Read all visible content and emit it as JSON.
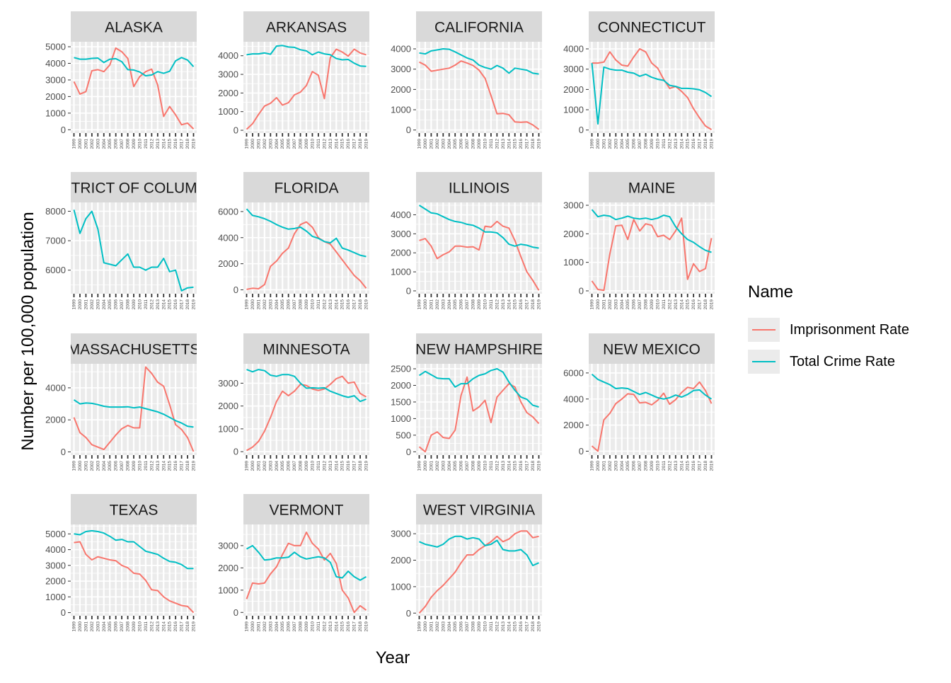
{
  "chart_data": {
    "type": "line",
    "xlabel": "Year",
    "ylabel": "Number per 100,000 population",
    "x": [
      "1999",
      "2000",
      "2001",
      "2002",
      "2003",
      "2004",
      "2005",
      "2006",
      "2007",
      "2008",
      "2009",
      "2010",
      "2011",
      "2012",
      "2013",
      "2014",
      "2015",
      "2016",
      "2017",
      "2018",
      "2019"
    ],
    "legend": {
      "title": "Name",
      "placement": "right",
      "entries": [
        {
          "name": "Imprisonment Rate",
          "color": "#F8766D"
        },
        {
          "name": "Total Crime Rate",
          "color": "#00BFC4"
        }
      ]
    },
    "grid": true,
    "panel_background": "#EBEBEB",
    "strip_background": "#D9D9D9",
    "facets": [
      {
        "title": "ALASKA",
        "ylim": [
          -200,
          5300
        ],
        "yticks": [
          0,
          1000,
          2000,
          3000,
          4000,
          5000
        ],
        "series": [
          {
            "name": "Imprisonment Rate",
            "values": [
              2900,
              2150,
              2300,
              3550,
              3620,
              3500,
              3900,
              4920,
              4700,
              4300,
              2600,
              3200,
              3500,
              3650,
              2700,
              800,
              1400,
              900,
              300,
              400,
              50
            ]
          },
          {
            "name": "Total Crime Rate",
            "values": [
              4350,
              4250,
              4250,
              4300,
              4320,
              4050,
              4250,
              4280,
              4100,
              3620,
              3600,
              3480,
              3250,
              3300,
              3500,
              3400,
              3520,
              4150,
              4350,
              4200,
              3800
            ]
          }
        ]
      },
      {
        "title": "ARKANSAS",
        "ylim": [
          -150,
          4750
        ],
        "yticks": [
          0,
          1000,
          2000,
          3000,
          4000
        ],
        "series": [
          {
            "name": "Imprisonment Rate",
            "values": [
              50,
              350,
              850,
              1300,
              1450,
              1750,
              1350,
              1480,
              1900,
              2050,
              2400,
              3150,
              2950,
              1700,
              3900,
              4350,
              4200,
              3980,
              4350,
              4150,
              4050
            ]
          },
          {
            "name": "Total Crime Rate",
            "values": [
              4050,
              4100,
              4100,
              4150,
              4080,
              4520,
              4550,
              4470,
              4450,
              4320,
              4260,
              4050,
              4200,
              4100,
              4050,
              3850,
              3780,
              3800,
              3600,
              3450,
              3430
            ]
          }
        ]
      },
      {
        "title": "CALIFORNIA",
        "ylim": [
          -150,
          4350
        ],
        "yticks": [
          0,
          1000,
          2000,
          3000,
          4000
        ],
        "series": [
          {
            "name": "Imprisonment Rate",
            "values": [
              3350,
              3200,
              2900,
              2950,
              3000,
              3050,
              3200,
              3400,
              3300,
              3180,
              2950,
              2550,
              1700,
              800,
              820,
              750,
              400,
              380,
              400,
              250,
              30
            ]
          },
          {
            "name": "Total Crime Rate",
            "values": [
              3800,
              3750,
              3900,
              3950,
              4000,
              3980,
              3850,
              3700,
              3550,
              3450,
              3200,
              3080,
              3000,
              3180,
              3050,
              2800,
              3050,
              3000,
              2950,
              2800,
              2760
            ]
          }
        ]
      },
      {
        "title": "CONNECTICUT",
        "ylim": [
          -150,
          4350
        ],
        "yticks": [
          0,
          1000,
          2000,
          3000,
          4000
        ],
        "series": [
          {
            "name": "Imprisonment Rate",
            "values": [
              3300,
              3300,
              3350,
              3850,
              3450,
              3200,
              3150,
              3600,
              4000,
              3850,
              3300,
              3050,
              2500,
              2050,
              2150,
              1900,
              1600,
              1050,
              600,
              200,
              20
            ]
          },
          {
            "name": "Total Crime Rate",
            "values": [
              3300,
              300,
              3100,
              3000,
              2950,
              2950,
              2850,
              2800,
              2650,
              2750,
              2600,
              2500,
              2450,
              2200,
              2150,
              2050,
              2050,
              2030,
              1980,
              1850,
              1650
            ]
          }
        ]
      },
      {
        "title": "DISTRICT OF COLUMBIA",
        "ylim": [
          5200,
          8300
        ],
        "yticks": [
          6000,
          7000,
          8000
        ],
        "series": [
          {
            "name": "Total Crime Rate",
            "values": [
              8050,
              7250,
              7750,
              8000,
              7400,
              6250,
              6200,
              6150,
              6350,
              6550,
              6100,
              6100,
              6000,
              6100,
              6100,
              6400,
              5950,
              6000,
              5300,
              5400,
              5420
            ]
          }
        ]
      },
      {
        "title": "FLORIDA",
        "ylim": [
          -300,
          6700
        ],
        "yticks": [
          0,
          2000,
          4000,
          6000
        ],
        "series": [
          {
            "name": "Imprisonment Rate",
            "values": [
              30,
              120,
              80,
              400,
              1800,
              2200,
              2800,
              3200,
              4300,
              5000,
              5200,
              4800,
              4000,
              3700,
              3500,
              2900,
              2300,
              1700,
              1100,
              700,
              120
            ]
          },
          {
            "name": "Total Crime Rate",
            "values": [
              6200,
              5700,
              5600,
              5450,
              5250,
              5000,
              4800,
              4650,
              4700,
              4800,
              4500,
              4100,
              3950,
              3700,
              3600,
              3950,
              3200,
              3050,
              2850,
              2650,
              2550
            ]
          }
        ]
      },
      {
        "title": "ILLINOIS",
        "ylim": [
          -150,
          4650
        ],
        "yticks": [
          0,
          1000,
          2000,
          3000,
          4000
        ],
        "series": [
          {
            "name": "Imprisonment Rate",
            "values": [
              2650,
              2750,
              2350,
              1700,
              1900,
              2050,
              2350,
              2350,
              2300,
              2320,
              2150,
              3400,
              3350,
              3650,
              3400,
              3300,
              2650,
              1800,
              1000,
              550,
              30
            ]
          },
          {
            "name": "Total Crime Rate",
            "values": [
              4500,
              4300,
              4100,
              4050,
              3900,
              3750,
              3650,
              3600,
              3500,
              3450,
              3300,
              3100,
              3100,
              3050,
              2800,
              2450,
              2350,
              2450,
              2400,
              2300,
              2250
            ]
          }
        ]
      },
      {
        "title": "MAINE",
        "ylim": [
          -100,
          3100
        ],
        "yticks": [
          0,
          1000,
          2000,
          3000
        ],
        "series": [
          {
            "name": "Imprisonment Rate",
            "values": [
              350,
              50,
              20,
              1300,
              2280,
              2300,
              1800,
              2500,
              2100,
              2350,
              2300,
              1900,
              1950,
              1800,
              2100,
              2550,
              400,
              950,
              680,
              780,
              1850
            ]
          },
          {
            "name": "Total Crime Rate",
            "values": [
              2850,
              2600,
              2650,
              2620,
              2500,
              2550,
              2620,
              2550,
              2520,
              2550,
              2500,
              2550,
              2650,
              2600,
              2250,
              2000,
              1800,
              1700,
              1550,
              1420,
              1350
            ]
          }
        ]
      },
      {
        "title": "MASSACHUSETTS",
        "ylim": [
          -200,
          5500
        ],
        "yticks": [
          0,
          2000,
          4000
        ],
        "series": [
          {
            "name": "Imprisonment Rate",
            "values": [
              2150,
              1200,
              900,
              450,
              300,
              150,
              600,
              1050,
              1450,
              1650,
              1500,
              1500,
              5300,
              4900,
              4350,
              4100,
              2950,
              1700,
              1400,
              900,
              20
            ]
          },
          {
            "name": "Total Crime Rate",
            "values": [
              3250,
              3000,
              3050,
              3030,
              2950,
              2850,
              2800,
              2800,
              2800,
              2820,
              2750,
              2800,
              2700,
              2600,
              2500,
              2350,
              2150,
              1950,
              1800,
              1600,
              1550
            ]
          }
        ]
      },
      {
        "title": "MINNESOTA",
        "ylim": [
          -150,
          3850
        ],
        "yticks": [
          0,
          1000,
          2000,
          3000
        ],
        "series": [
          {
            "name": "Imprisonment Rate",
            "values": [
              50,
              200,
              450,
              900,
              1500,
              2200,
              2650,
              2450,
              2650,
              2950,
              2900,
              2750,
              2680,
              2750,
              2950,
              3200,
              3300,
              3000,
              3050,
              2550,
              2400
            ]
          },
          {
            "name": "Total Crime Rate",
            "values": [
              3600,
              3500,
              3600,
              3550,
              3350,
              3300,
              3380,
              3380,
              3300,
              3000,
              2780,
              2800,
              2780,
              2800,
              2650,
              2550,
              2450,
              2380,
              2450,
              2200,
              2300
            ]
          }
        ]
      },
      {
        "title": "NEW HAMPSHIRE",
        "ylim": [
          -100,
          2650
        ],
        "yticks": [
          0,
          500,
          1000,
          1500,
          2000,
          2500
        ],
        "series": [
          {
            "name": "Imprisonment Rate",
            "values": [
              150,
              0,
              500,
              600,
              430,
              400,
              650,
              1700,
              2250,
              1230,
              1350,
              1550,
              880,
              1650,
              1850,
              2050,
              1950,
              1500,
              1180,
              1050,
              850
            ]
          },
          {
            "name": "Total Crime Rate",
            "values": [
              2300,
              2420,
              2320,
              2220,
              2200,
              2200,
              1950,
              2050,
              2050,
              2200,
              2300,
              2350,
              2450,
              2500,
              2400,
              2100,
              1850,
              1650,
              1580,
              1400,
              1350
            ]
          }
        ]
      },
      {
        "title": "NEW MEXICO",
        "ylim": [
          -300,
          6700
        ],
        "yticks": [
          0,
          2000,
          4000,
          6000
        ],
        "series": [
          {
            "name": "Imprisonment Rate",
            "values": [
              400,
              0,
              2400,
              2900,
              3650,
              4000,
              4400,
              4350,
              3700,
              3750,
              3550,
              3900,
              4450,
              3600,
              3950,
              4500,
              4900,
              4800,
              5300,
              4650,
              3650
            ]
          },
          {
            "name": "Total Crime Rate",
            "values": [
              5900,
              5500,
              5300,
              5100,
              4800,
              4850,
              4800,
              4580,
              4350,
              4500,
              4300,
              4100,
              4000,
              4100,
              4300,
              4150,
              4350,
              4650,
              4700,
              4300,
              4000
            ]
          }
        ]
      },
      {
        "title": "TEXAS",
        "ylim": [
          -200,
          5600
        ],
        "yticks": [
          0,
          1000,
          2000,
          3000,
          4000,
          5000
        ],
        "series": [
          {
            "name": "Imprisonment Rate",
            "values": [
              4450,
              4500,
              3700,
              3350,
              3550,
              3450,
              3350,
              3300,
              3000,
              2850,
              2500,
              2450,
              2050,
              1450,
              1400,
              1000,
              750,
              600,
              450,
              400,
              0
            ]
          },
          {
            "name": "Total Crime Rate",
            "values": [
              5000,
              4950,
              5150,
              5200,
              5150,
              5050,
              4850,
              4600,
              4650,
              4500,
              4500,
              4200,
              3900,
              3800,
              3700,
              3450,
              3250,
              3200,
              3050,
              2800,
              2800
            ]
          }
        ]
      },
      {
        "title": "VERMONT",
        "ylim": [
          -150,
          3950
        ],
        "yticks": [
          0,
          1000,
          2000,
          3000
        ],
        "series": [
          {
            "name": "Imprisonment Rate",
            "values": [
              600,
              1320,
              1280,
              1320,
              1730,
              2050,
              2600,
              3100,
              3000,
              3000,
              3600,
              3100,
              2850,
              2350,
              2650,
              2200,
              1000,
              650,
              0,
              300,
              100
            ]
          },
          {
            "name": "Total Crime Rate",
            "values": [
              2850,
              3000,
              2700,
              2350,
              2380,
              2450,
              2450,
              2480,
              2700,
              2500,
              2400,
              2450,
              2500,
              2450,
              2250,
              1600,
              1550,
              1850,
              1600,
              1450,
              1600
            ]
          }
        ]
      },
      {
        "title": "WEST VIRGINIA",
        "ylim": [
          -100,
          3350
        ],
        "yticks": [
          0,
          1000,
          2000,
          3000
        ],
        "series": [
          {
            "name": "Imprisonment Rate",
            "values": [
              0,
              250,
              600,
              850,
              1050,
              1300,
              1550,
              1900,
              2200,
              2200,
              2400,
              2550,
              2700,
              2900,
              2700,
              2800,
              3000,
              3100,
              3100,
              2850,
              2900
            ]
          },
          {
            "name": "Total Crime Rate",
            "values": [
              2700,
              2600,
              2550,
              2500,
              2600,
              2800,
              2900,
              2900,
              2800,
              2850,
              2800,
              2550,
              2600,
              2750,
              2400,
              2350,
              2350,
              2400,
              2200,
              1800,
              1900
            ]
          }
        ]
      }
    ]
  }
}
